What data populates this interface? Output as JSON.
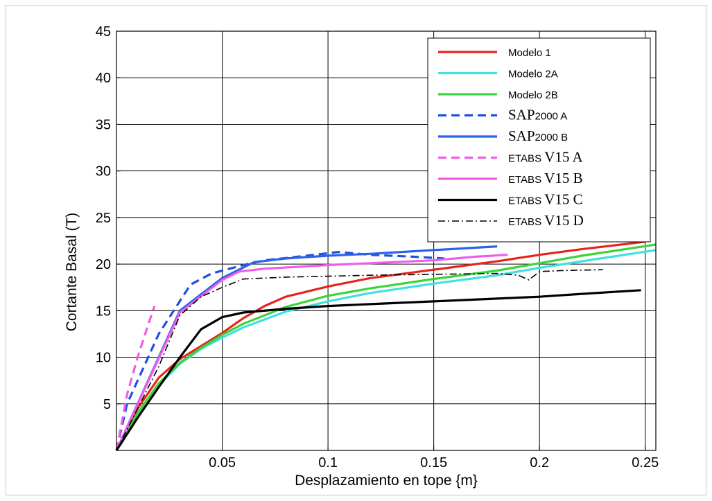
{
  "chart_data": {
    "type": "line",
    "title": "",
    "xlabel": "Desplazamiento en tope {m}",
    "ylabel": "Cortante Basal (T)",
    "xlim": [
      0,
      0.255
    ],
    "ylim": [
      0,
      45
    ],
    "xticks": [
      0.05,
      0.1,
      0.15,
      0.2,
      0.25
    ],
    "xtick_labels": [
      "0.05",
      "0.1",
      "0.15",
      "0.2",
      "0.25"
    ],
    "yticks": [
      5,
      10,
      15,
      20,
      25,
      30,
      35,
      40,
      45
    ],
    "ytick_labels": [
      "5",
      "10",
      "15",
      "20",
      "25",
      "30",
      "35",
      "40",
      "45"
    ],
    "grid": true,
    "legend_position": "top-right",
    "series": [
      {
        "name": "Modelo 1",
        "color": "#e8231c",
        "dash": "solid",
        "legend_font": "sans",
        "x": [
          0,
          0.01,
          0.02,
          0.03,
          0.04,
          0.05,
          0.06,
          0.07,
          0.08,
          0.1,
          0.12,
          0.15,
          0.18,
          0.2,
          0.22,
          0.25
        ],
        "y": [
          0,
          4.5,
          7.8,
          9.8,
          11.2,
          12.6,
          14.2,
          15.5,
          16.5,
          17.6,
          18.5,
          19.4,
          20.3,
          21,
          21.6,
          22.4
        ]
      },
      {
        "name": "Modelo 2A",
        "color": "#3fe0e0",
        "dash": "solid",
        "legend_font": "sans",
        "x": [
          0,
          0.01,
          0.02,
          0.03,
          0.04,
          0.05,
          0.06,
          0.08,
          0.1,
          0.12,
          0.15,
          0.18,
          0.2,
          0.22,
          0.255
        ],
        "y": [
          0,
          3.8,
          7,
          9.3,
          10.9,
          12.1,
          13.2,
          14.9,
          16,
          16.9,
          17.9,
          18.8,
          19.6,
          20.3,
          21.5
        ]
      },
      {
        "name": "Modelo 2B",
        "color": "#3ad43a",
        "dash": "solid",
        "legend_font": "sans",
        "x": [
          0,
          0.01,
          0.02,
          0.03,
          0.04,
          0.05,
          0.06,
          0.08,
          0.1,
          0.12,
          0.15,
          0.18,
          0.2,
          0.22,
          0.255
        ],
        "y": [
          0,
          4,
          7.2,
          9.4,
          11,
          12.4,
          13.6,
          15.4,
          16.6,
          17.4,
          18.4,
          19.3,
          20.1,
          20.9,
          22.1
        ]
      },
      {
        "name": "SAP2000 A",
        "color": "#1f4fe0",
        "dash": "dashed",
        "legend_font": "serif",
        "x": [
          0,
          0.005,
          0.02,
          0.035,
          0.045,
          0.06,
          0.07,
          0.09,
          0.105,
          0.12,
          0.14,
          0.155
        ],
        "y": [
          0,
          5,
          12.5,
          17.8,
          19,
          19.9,
          20.4,
          20.9,
          21.3,
          21,
          20.8,
          20.6
        ]
      },
      {
        "name": "SAP2000 B",
        "color": "#2a62e8",
        "dash": "solid",
        "legend_font": "serif",
        "x": [
          0,
          0.03,
          0.05,
          0.065,
          0.08,
          0.1,
          0.12,
          0.15,
          0.18
        ],
        "y": [
          0,
          15,
          18.5,
          20.2,
          20.6,
          20.9,
          21.1,
          21.5,
          21.9
        ]
      },
      {
        "name": "ETABS V15 A",
        "color": "#ee5ee8",
        "dash": "dashed",
        "legend_font": "serif",
        "x": [
          0,
          0.005,
          0.01,
          0.015,
          0.018
        ],
        "y": [
          0,
          6,
          10,
          13.5,
          15.5
        ]
      },
      {
        "name": "ETABS V15 B",
        "color": "#ee5ee8",
        "dash": "solid",
        "legend_font": "serif",
        "x": [
          0,
          0.03,
          0.05,
          0.058,
          0.07,
          0.1,
          0.12,
          0.15,
          0.17,
          0.185
        ],
        "y": [
          0,
          14.8,
          18.3,
          19.2,
          19.5,
          19.9,
          20.1,
          20.4,
          20.8,
          21
        ]
      },
      {
        "name": "ETABS V15 C",
        "color": "#000000",
        "dash": "solid",
        "legend_font": "serif",
        "x": [
          0,
          0.01,
          0.02,
          0.03,
          0.04,
          0.05,
          0.06,
          0.08,
          0.1,
          0.12,
          0.15,
          0.18,
          0.2,
          0.22,
          0.248
        ],
        "y": [
          0,
          3.5,
          6.8,
          10,
          13,
          14.3,
          14.8,
          15.2,
          15.5,
          15.7,
          16,
          16.3,
          16.5,
          16.8,
          17.2
        ]
      },
      {
        "name": "ETABS V15 D",
        "color": "#000000",
        "dash": "dashdot",
        "legend_font": "serif",
        "x": [
          0,
          0.01,
          0.02,
          0.03,
          0.04,
          0.05,
          0.06,
          0.07,
          0.08,
          0.1,
          0.12,
          0.15,
          0.18,
          0.19,
          0.195,
          0.2,
          0.21,
          0.23
        ],
        "y": [
          0,
          4.5,
          9,
          14.5,
          16.5,
          17.5,
          18.4,
          18.5,
          18.6,
          18.7,
          18.8,
          18.9,
          19,
          18.8,
          18.3,
          19.2,
          19.3,
          19.4
        ]
      }
    ]
  },
  "legend_entries": [
    {
      "main": "Modelo 1",
      "sub": ""
    },
    {
      "main": "Modelo 2A",
      "sub": ""
    },
    {
      "main": "Modelo 2B",
      "sub": ""
    },
    {
      "main": "SAP",
      "sub": "2000 A"
    },
    {
      "main": "SAP",
      "sub": "2000 B"
    },
    {
      "main": "V15 A",
      "sub": "ETABS "
    },
    {
      "main": "V15 B",
      "sub": "ETABS "
    },
    {
      "main": "V15 C",
      "sub": "ETABS "
    },
    {
      "main": "V15 D",
      "sub": "ETABS "
    }
  ]
}
